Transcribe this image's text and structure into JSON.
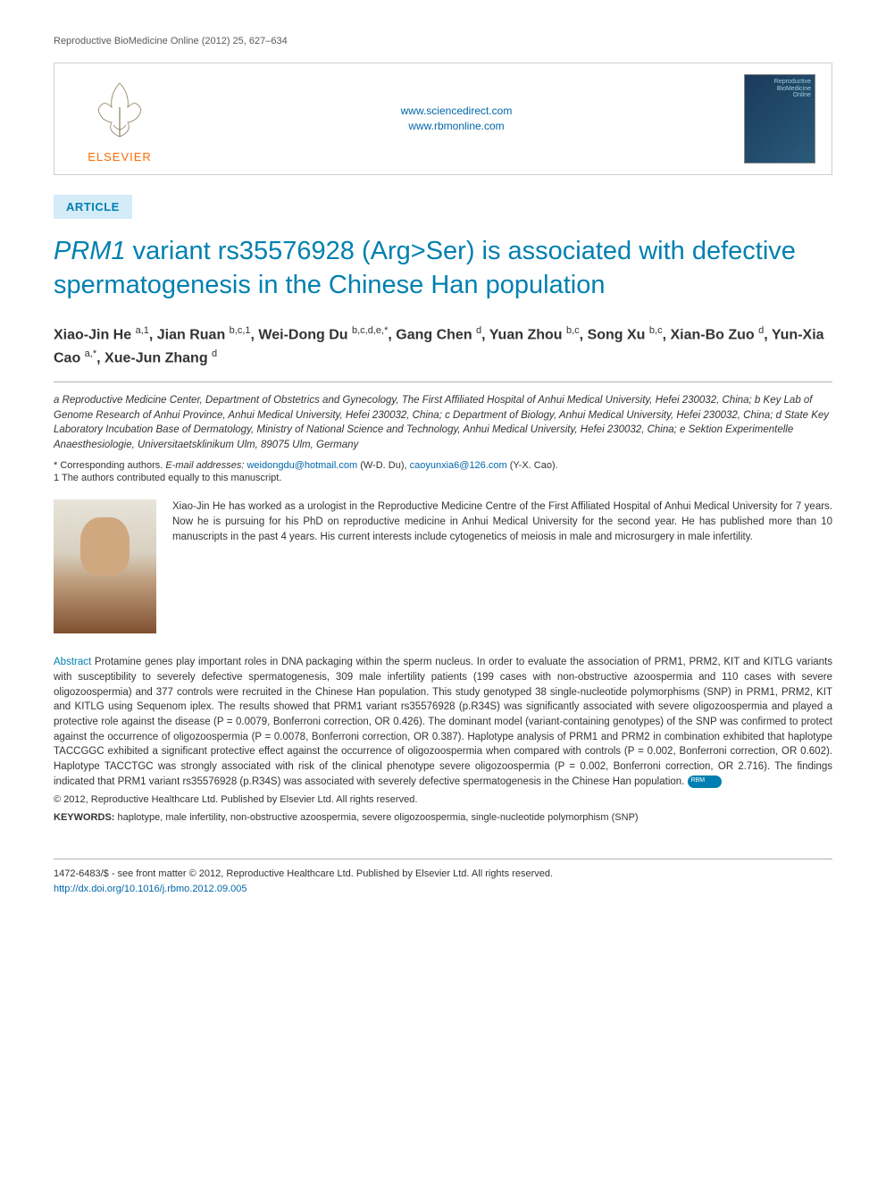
{
  "journal_header": "Reproductive BioMedicine Online (2012) 25, 627–634",
  "banner": {
    "elsevier_label": "ELSEVIER",
    "link1": "www.sciencedirect.com",
    "link2": "www.rbmonline.com",
    "cover_text1": "Reproductive",
    "cover_text2": "BioMedicine",
    "cover_text3": "Online"
  },
  "article_label": "ARTICLE",
  "title": {
    "part1_italic": "PRM1",
    "part2": " variant rs35576928 (Arg>Ser) is associated with defective spermatogenesis in the Chinese Han population"
  },
  "authors_line": "Xiao-Jin He a,1, Jian Ruan b,c,1, Wei-Dong Du b,c,d,e,*, Gang Chen d, Yuan Zhou b,c, Song Xu b,c, Xian-Bo Zuo d, Yun-Xia Cao a,*, Xue-Jun Zhang d",
  "authors": [
    {
      "name": "Xiao-Jin He ",
      "sup": "a,1"
    },
    {
      "name": ", Jian Ruan ",
      "sup": "b,c,1"
    },
    {
      "name": ", Wei-Dong Du ",
      "sup": "b,c,d,e,*"
    },
    {
      "name": ", Gang Chen ",
      "sup": "d"
    },
    {
      "name": ", Yuan Zhou ",
      "sup": "b,c"
    },
    {
      "name": ", Song Xu ",
      "sup": "b,c"
    },
    {
      "name": ", Xian-Bo Zuo ",
      "sup": "d"
    },
    {
      "name": ", Yun-Xia Cao ",
      "sup": "a,*"
    },
    {
      "name": ", Xue-Jun Zhang ",
      "sup": "d"
    }
  ],
  "affiliations": "a Reproductive Medicine Center, Department of Obstetrics and Gynecology, The First Affiliated Hospital of Anhui Medical University, Hefei 230032, China; b Key Lab of Genome Research of Anhui Province, Anhui Medical University, Hefei 230032, China; c Department of Biology, Anhui Medical University, Hefei 230032, China; d State Key Laboratory Incubation Base of Dermatology, Ministry of National Science and Technology, Anhui Medical University, Hefei 230032, China; e Sektion Experimentelle Anaesthesiologie, Universitaetsklinikum Ulm, 89075 Ulm, Germany",
  "corresponding": {
    "prefix": "* Corresponding authors.   ",
    "email_label": "E-mail addresses:",
    "email1": "weidongdu@hotmail.com",
    "name1": " (W-D. Du), ",
    "email2": "caoyunxia6@126.com",
    "name2": " (Y-X. Cao)."
  },
  "contributed": "1 The authors contributed equally to this manuscript.",
  "bio_text": "Xiao-Jin He has worked as a urologist in the Reproductive Medicine Centre of the First Affiliated Hospital of Anhui Medical University for 7 years. Now he is pursuing for his PhD on reproductive medicine in Anhui Medical University for the second year. He has published more than 10 manuscripts in the past 4 years. His current interests include cytogenetics of meiosis in male and microsurgery in male infertility.",
  "abstract": {
    "label": "Abstract",
    "text": "   Protamine genes play important roles in DNA packaging within the sperm nucleus. In order to evaluate the association of PRM1, PRM2, KIT and KITLG variants with susceptibility to severely defective spermatogenesis, 309 male infertility patients (199 cases with non-obstructive azoospermia and 110 cases with severe oligozoospermia) and 377 controls were recruited in the Chinese Han population. This study genotyped 38 single-nucleotide polymorphisms (SNP) in PRM1, PRM2, KIT and KITLG using Sequenom iplex. The results showed that PRM1 variant rs35576928 (p.R34S) was significantly associated with severe oligozoospermia and played a protective role against the disease (P = 0.0079, Bonferroni correction, OR 0.426). The dominant model (variant-containing genotypes) of the SNP was confirmed to protect against the occurrence of oligozoospermia (P = 0.0078, Bonferroni correction, OR 0.387). Haplotype analysis of PRM1 and PRM2 in combination exhibited that haplotype TACCGGC exhibited a significant protective effect against the occurrence of oligozoospermia when compared with controls (P = 0.002, Bonferroni correction, OR 0.602). Haplotype TACCTGC was strongly associated with risk of the clinical phenotype severe oligozoospermia (P = 0.002, Bonferroni correction, OR 2.716). The findings indicated that PRM1 variant rs35576928 (p.R34S) was associated with severely defective spermatogenesis in the Chinese Han population."
  },
  "copyright_abstract": "© 2012, Reproductive Healthcare Ltd. Published by Elsevier Ltd. All rights reserved.",
  "keywords": {
    "label": "KEYWORDS:",
    "text": " haplotype, male infertility, non-obstructive azoospermia, severe oligozoospermia, single-nucleotide polymorphism (SNP)"
  },
  "footer": {
    "line1": "1472-6483/$ - see front matter © 2012, Reproductive Healthcare Ltd. Published by Elsevier Ltd. All rights reserved.",
    "doi": "http://dx.doi.org/10.1016/j.rbmo.2012.09.005"
  },
  "colors": {
    "accent_blue": "#0080b0",
    "link_blue": "#0066aa",
    "elsevier_orange": "#ff6a00",
    "light_blue_bg": "#d4ecf7",
    "border_gray": "#b0b0b0",
    "text": "#333333"
  },
  "typography": {
    "title_fontsize": 29,
    "author_fontsize": 16,
    "body_fontsize": 11.5,
    "small_fontsize": 11
  }
}
